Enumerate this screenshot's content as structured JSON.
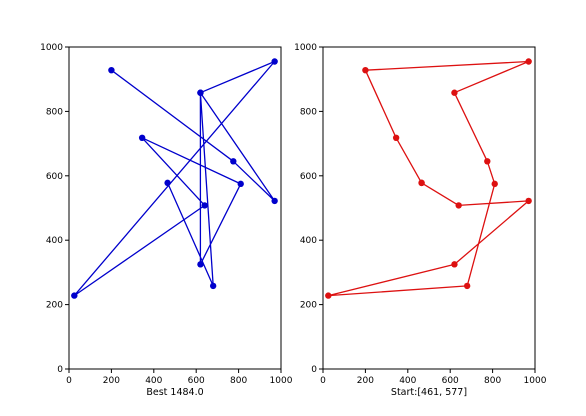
{
  "chart_data": [
    {
      "type": "line",
      "xlabel": "Best 1484.0",
      "ylabel": "",
      "title": "",
      "xlim": [
        0,
        1000
      ],
      "ylim": [
        0,
        1000
      ],
      "xticks": [
        0,
        200,
        400,
        600,
        800,
        1000
      ],
      "yticks": [
        0,
        200,
        400,
        600,
        800,
        1000
      ],
      "grid": false,
      "color": "#0000cc",
      "series": [
        {
          "x": [
            200,
            775,
            970,
            620,
            620,
            810,
            345,
            640,
            25,
            970,
            620,
            680,
            465
          ],
          "y": [
            928,
            645,
            522,
            858,
            325,
            575,
            718,
            508,
            228,
            955,
            858,
            258,
            578
          ]
        }
      ]
    },
    {
      "type": "line",
      "xlabel": "Start:[461, 577]",
      "ylabel": "",
      "title": "",
      "xlim": [
        0,
        1000
      ],
      "ylim": [
        0,
        1000
      ],
      "xticks": [
        0,
        200,
        400,
        600,
        800,
        1000
      ],
      "yticks": [
        0,
        200,
        400,
        600,
        800,
        1000
      ],
      "grid": false,
      "color": "#dd1111",
      "series": [
        {
          "x": [
            465,
            345,
            200,
            970,
            620,
            775,
            810,
            680,
            25,
            620,
            970,
            640,
            465
          ],
          "y": [
            578,
            718,
            928,
            955,
            858,
            645,
            575,
            258,
            228,
            325,
            522,
            508,
            578
          ]
        }
      ]
    }
  ]
}
